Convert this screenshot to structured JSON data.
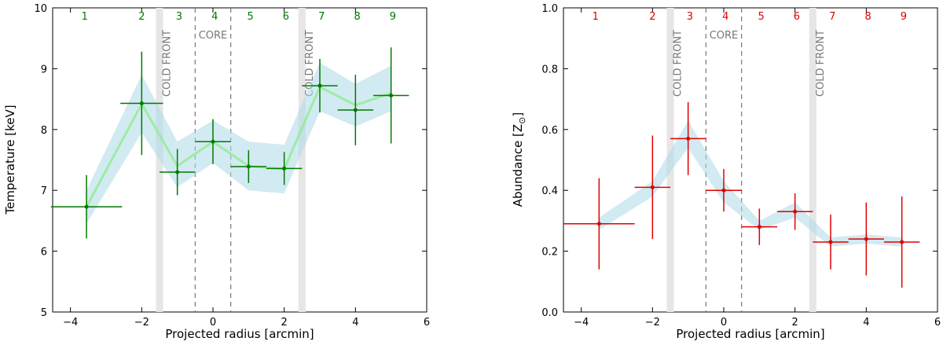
{
  "chart_data": [
    {
      "type": "scatter",
      "xlabel": "Projected radius [arcmin]",
      "ylabel": "Temperature [keV]",
      "xlim": [
        -4.5,
        6
      ],
      "ylim": [
        5,
        10
      ],
      "xticks": [
        -4,
        -2,
        0,
        2,
        4,
        6
      ],
      "yticks": [
        5,
        6,
        7,
        8,
        9,
        10
      ],
      "color": "#007a00",
      "band_color": "#add8e6",
      "model_color": "#90ee90",
      "cold_fronts": [
        -1.5,
        2.5
      ],
      "core": [
        -0.5,
        0.5
      ],
      "labels": {
        "cold_front": "COLD FRONT",
        "core": "CORE"
      },
      "region_numbers": [
        "1",
        "2",
        "3",
        "4",
        "5",
        "6",
        "7",
        "8",
        "9"
      ],
      "region_number_x": [
        -3.6,
        -2,
        -0.95,
        0.05,
        1.05,
        2.05,
        3.05,
        4.05,
        5.05
      ],
      "points": [
        {
          "x": -3.55,
          "xerr": [
            1.0,
            1.0
          ],
          "y": 6.73,
          "yerr": [
            0.52,
            0.52
          ]
        },
        {
          "x": -2.0,
          "xerr": [
            0.6,
            0.6
          ],
          "y": 8.43,
          "yerr": [
            0.85,
            0.85
          ]
        },
        {
          "x": -1.0,
          "xerr": [
            0.5,
            0.5
          ],
          "y": 7.3,
          "yerr": [
            0.38,
            0.38
          ]
        },
        {
          "x": 0.0,
          "xerr": [
            0.5,
            0.5
          ],
          "y": 7.8,
          "yerr": [
            0.37,
            0.37
          ]
        },
        {
          "x": 1.0,
          "xerr": [
            0.5,
            0.5
          ],
          "y": 7.39,
          "yerr": [
            0.27,
            0.27
          ]
        },
        {
          "x": 2.0,
          "xerr": [
            0.5,
            0.5
          ],
          "y": 7.36,
          "yerr": [
            0.27,
            0.27
          ]
        },
        {
          "x": 3.0,
          "xerr": [
            0.5,
            0.5
          ],
          "y": 8.72,
          "yerr": [
            0.44,
            0.44
          ]
        },
        {
          "x": 4.0,
          "xerr": [
            0.5,
            0.5
          ],
          "y": 8.32,
          "yerr": [
            0.58,
            0.58
          ]
        },
        {
          "x": 5.0,
          "xerr": [
            0.5,
            0.5
          ],
          "y": 8.56,
          "yerr": [
            0.79,
            0.79
          ]
        }
      ],
      "band": {
        "x": [
          -3.55,
          -2.0,
          -1.0,
          0.0,
          1.0,
          2.0,
          3.0,
          4.0,
          5.0
        ],
        "low": [
          6.45,
          7.95,
          7.05,
          7.45,
          7.0,
          6.95,
          8.3,
          8.05,
          8.3
        ],
        "high": [
          7.0,
          8.9,
          7.8,
          8.15,
          7.8,
          7.75,
          9.1,
          8.75,
          9.05
        ],
        "mid": [
          6.73,
          8.42,
          7.4,
          7.8,
          7.4,
          7.35,
          8.7,
          8.4,
          8.6
        ]
      }
    },
    {
      "type": "scatter",
      "xlabel": "Projected radius [arcmin]",
      "ylabel": "Abundance [Z",
      "ylabel_sub": "⊙",
      "ylabel_end": "]",
      "xlim": [
        -4.5,
        6
      ],
      "ylim": [
        0.0,
        1.0
      ],
      "xticks": [
        -4,
        -2,
        0,
        2,
        4,
        6
      ],
      "yticks": [
        0.0,
        0.2,
        0.4,
        0.6,
        0.8,
        1.0
      ],
      "ytick_labels": [
        "0.0",
        "0.2",
        "0.4",
        "0.6",
        "0.8",
        "1.0"
      ],
      "color": "#e00000",
      "band_color": "#add8e6",
      "cold_fronts": [
        -1.5,
        2.5
      ],
      "core": [
        -0.5,
        0.5
      ],
      "labels": {
        "cold_front": "COLD FRONT",
        "core": "CORE"
      },
      "region_numbers": [
        "1",
        "2",
        "3",
        "4",
        "5",
        "6",
        "7",
        "8",
        "9"
      ],
      "region_number_x": [
        -3.6,
        -2,
        -0.95,
        0.05,
        1.05,
        2.05,
        3.05,
        4.05,
        5.05
      ],
      "points": [
        {
          "x": -3.5,
          "xerr": [
            1.0,
            1.0
          ],
          "y": 0.29,
          "yerr": [
            0.15,
            0.15
          ]
        },
        {
          "x": -2.0,
          "xerr": [
            0.5,
            0.5
          ],
          "y": 0.41,
          "yerr": [
            0.17,
            0.17
          ]
        },
        {
          "x": -1.0,
          "xerr": [
            0.5,
            0.5
          ],
          "y": 0.57,
          "yerr": [
            0.12,
            0.12
          ]
        },
        {
          "x": 0.0,
          "xerr": [
            0.5,
            0.5
          ],
          "y": 0.4,
          "yerr": [
            0.07,
            0.07
          ]
        },
        {
          "x": 1.0,
          "xerr": [
            0.5,
            0.5
          ],
          "y": 0.28,
          "yerr": [
            0.06,
            0.06
          ]
        },
        {
          "x": 2.0,
          "xerr": [
            0.5,
            0.5
          ],
          "y": 0.33,
          "yerr": [
            0.06,
            0.06
          ]
        },
        {
          "x": 3.0,
          "xerr": [
            0.5,
            0.5
          ],
          "y": 0.23,
          "yerr": [
            0.09,
            0.09
          ]
        },
        {
          "x": 4.0,
          "xerr": [
            0.5,
            0.5
          ],
          "y": 0.24,
          "yerr": [
            0.12,
            0.12
          ]
        },
        {
          "x": 5.0,
          "xerr": [
            0.5,
            0.5
          ],
          "y": 0.23,
          "yerr": [
            0.15,
            0.15
          ]
        }
      ],
      "band": {
        "x": [
          -3.5,
          -2.0,
          -1.0,
          0.0,
          1.0,
          2.0,
          3.0,
          4.0,
          5.0
        ],
        "low": [
          0.27,
          0.38,
          0.54,
          0.36,
          0.27,
          0.31,
          0.215,
          0.225,
          0.215
        ],
        "high": [
          0.31,
          0.43,
          0.63,
          0.43,
          0.3,
          0.36,
          0.245,
          0.255,
          0.245
        ]
      }
    }
  ]
}
